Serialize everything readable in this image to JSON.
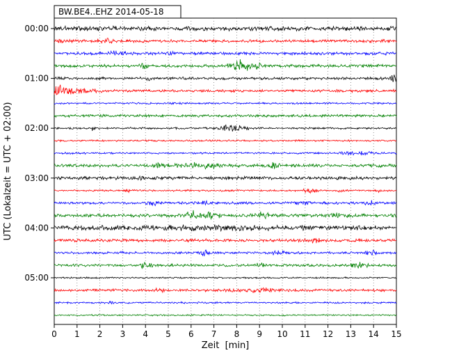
{
  "chart_data": {
    "type": "line",
    "variant": "seismogram-helicorder-dayplot",
    "title": "BW.BE4..EHZ 2014-05-18",
    "station": "BW.BE4..EHZ",
    "date": "2014-05-18",
    "xlabel": "Zeit  [min]",
    "ylabel": "UTC (Lokalzeit = UTC + 02:00)",
    "x_range_minutes": [
      0,
      15
    ],
    "x_ticks": [
      "0",
      "1",
      "2",
      "3",
      "4",
      "5",
      "6",
      "7",
      "8",
      "9",
      "10",
      "11",
      "12",
      "13",
      "14",
      "15"
    ],
    "minutes_per_trace": 15,
    "grid": "vertical-dotted-each-minute",
    "legend": "none",
    "color_cycle": [
      "#000000",
      "#ff0000",
      "#0000ff",
      "#008000"
    ],
    "hour_labels": [
      {
        "label": "00:00",
        "trace_index": 0
      },
      {
        "label": "01:00",
        "trace_index": 4
      },
      {
        "label": "02:00",
        "trace_index": 8
      },
      {
        "label": "03:00",
        "trace_index": 12
      },
      {
        "label": "04:00",
        "trace_index": 16
      },
      {
        "label": "05:00",
        "trace_index": 20
      }
    ],
    "traces": [
      {
        "start": "00:00",
        "color": "#000000",
        "noise_amp": 2.3,
        "events": [
          {
            "t": 3.0,
            "w": 0.12,
            "a": 2.0
          }
        ]
      },
      {
        "start": "00:15",
        "color": "#ff0000",
        "noise_amp": 1.5,
        "events": [
          {
            "t": 2.2,
            "w": 0.18,
            "a": 3.0
          },
          {
            "t": 0.3,
            "w": 0.2,
            "a": 1.0
          }
        ]
      },
      {
        "start": "00:30",
        "color": "#0000ff",
        "noise_amp": 1.5,
        "events": [
          {
            "t": 2.7,
            "w": 0.25,
            "a": 1.8
          },
          {
            "t": 5.0,
            "w": 0.2,
            "a": 1.0
          }
        ]
      },
      {
        "start": "00:45",
        "color": "#008000",
        "noise_amp": 1.6,
        "events": [
          {
            "t": 8.1,
            "w": 0.3,
            "a": 5.5
          },
          {
            "t": 8.9,
            "w": 0.2,
            "a": 3.2
          },
          {
            "t": 4.0,
            "w": 0.12,
            "a": 2.2
          }
        ]
      },
      {
        "start": "01:00",
        "color": "#000000",
        "noise_amp": 1.4,
        "events": [
          {
            "t": 14.93,
            "w": 0.12,
            "a": 6.0
          },
          {
            "t": 4.1,
            "w": 0.08,
            "a": 2.0
          }
        ]
      },
      {
        "start": "01:15",
        "color": "#ff0000",
        "noise_amp": 1.4,
        "events": [
          {
            "t": 0.2,
            "w": 0.35,
            "a": 4.5
          },
          {
            "t": 1.2,
            "w": 0.6,
            "a": 1.2
          }
        ]
      },
      {
        "start": "01:30",
        "color": "#0000ff",
        "noise_amp": 0.9,
        "events": []
      },
      {
        "start": "01:45",
        "color": "#008000",
        "noise_amp": 1.4,
        "events": []
      },
      {
        "start": "02:00",
        "color": "#000000",
        "noise_amp": 1.0,
        "events": [
          {
            "t": 7.8,
            "w": 0.35,
            "a": 3.5
          },
          {
            "t": 1.7,
            "w": 0.05,
            "a": 2.5
          }
        ]
      },
      {
        "start": "02:15",
        "color": "#ff0000",
        "noise_amp": 0.9,
        "events": []
      },
      {
        "start": "02:30",
        "color": "#0000ff",
        "noise_amp": 1.0,
        "events": [
          {
            "t": 13.3,
            "w": 0.4,
            "a": 1.5
          }
        ]
      },
      {
        "start": "02:45",
        "color": "#008000",
        "noise_amp": 1.6,
        "events": [
          {
            "t": 6.4,
            "w": 0.7,
            "a": 1.8
          },
          {
            "t": 9.6,
            "w": 0.25,
            "a": 2.2
          },
          {
            "t": 4.6,
            "w": 0.2,
            "a": 1.2
          }
        ]
      },
      {
        "start": "03:00",
        "color": "#000000",
        "noise_amp": 1.7,
        "events": [
          {
            "t": 3.7,
            "w": 0.07,
            "a": 3.0
          }
        ]
      },
      {
        "start": "03:15",
        "color": "#ff0000",
        "noise_amp": 0.9,
        "events": [
          {
            "t": 3.3,
            "w": 0.08,
            "a": 2.0
          },
          {
            "t": 11.2,
            "w": 0.25,
            "a": 1.8
          },
          {
            "t": 12.6,
            "w": 0.12,
            "a": 1.5
          },
          {
            "t": 14.2,
            "w": 0.1,
            "a": 1.3
          }
        ]
      },
      {
        "start": "03:30",
        "color": "#0000ff",
        "noise_amp": 1.3,
        "events": [
          {
            "t": 4.4,
            "w": 0.18,
            "a": 2.2
          },
          {
            "t": 11.0,
            "w": 0.25,
            "a": 1.8
          },
          {
            "t": 13.9,
            "w": 0.18,
            "a": 1.8
          },
          {
            "t": 6.5,
            "w": 0.2,
            "a": 1.2
          }
        ]
      },
      {
        "start": "03:45",
        "color": "#008000",
        "noise_amp": 1.7,
        "events": [
          {
            "t": 6.1,
            "w": 0.22,
            "a": 3.5
          },
          {
            "t": 6.9,
            "w": 0.25,
            "a": 3.2
          },
          {
            "t": 9.1,
            "w": 0.18,
            "a": 2.5
          },
          {
            "t": 12.5,
            "w": 0.3,
            "a": 1.2
          }
        ]
      },
      {
        "start": "04:00",
        "color": "#000000",
        "noise_amp": 2.5,
        "events": [
          {
            "t": 7.0,
            "w": 1.5,
            "a": 0.8
          }
        ]
      },
      {
        "start": "04:15",
        "color": "#ff0000",
        "noise_amp": 1.5,
        "events": [
          {
            "t": 11.5,
            "w": 0.3,
            "a": 1.2
          }
        ]
      },
      {
        "start": "04:30",
        "color": "#0000ff",
        "noise_amp": 1.2,
        "events": [
          {
            "t": 6.5,
            "w": 0.13,
            "a": 3.5
          },
          {
            "t": 9.8,
            "w": 0.25,
            "a": 1.8
          },
          {
            "t": 13.9,
            "w": 0.18,
            "a": 1.8
          },
          {
            "t": 2.9,
            "w": 0.1,
            "a": 1.2
          }
        ]
      },
      {
        "start": "04:45",
        "color": "#008000",
        "noise_amp": 1.4,
        "events": [
          {
            "t": 4.0,
            "w": 0.18,
            "a": 2.2
          },
          {
            "t": 13.4,
            "w": 0.22,
            "a": 2.2
          },
          {
            "t": 9.0,
            "w": 0.2,
            "a": 1.2
          }
        ]
      },
      {
        "start": "05:00",
        "color": "#000000",
        "noise_amp": 0.8,
        "events": []
      },
      {
        "start": "05:15",
        "color": "#ff0000",
        "noise_amp": 1.3,
        "events": [
          {
            "t": 9.0,
            "w": 0.9,
            "a": 1.3
          },
          {
            "t": 4.6,
            "w": 0.2,
            "a": 1.2
          }
        ]
      },
      {
        "start": "05:30",
        "color": "#0000ff",
        "noise_amp": 0.9,
        "events": [
          {
            "t": 2.5,
            "w": 0.08,
            "a": 1.8
          }
        ]
      },
      {
        "start": "05:45",
        "color": "#008000",
        "noise_amp": 0.8,
        "events": []
      }
    ]
  }
}
